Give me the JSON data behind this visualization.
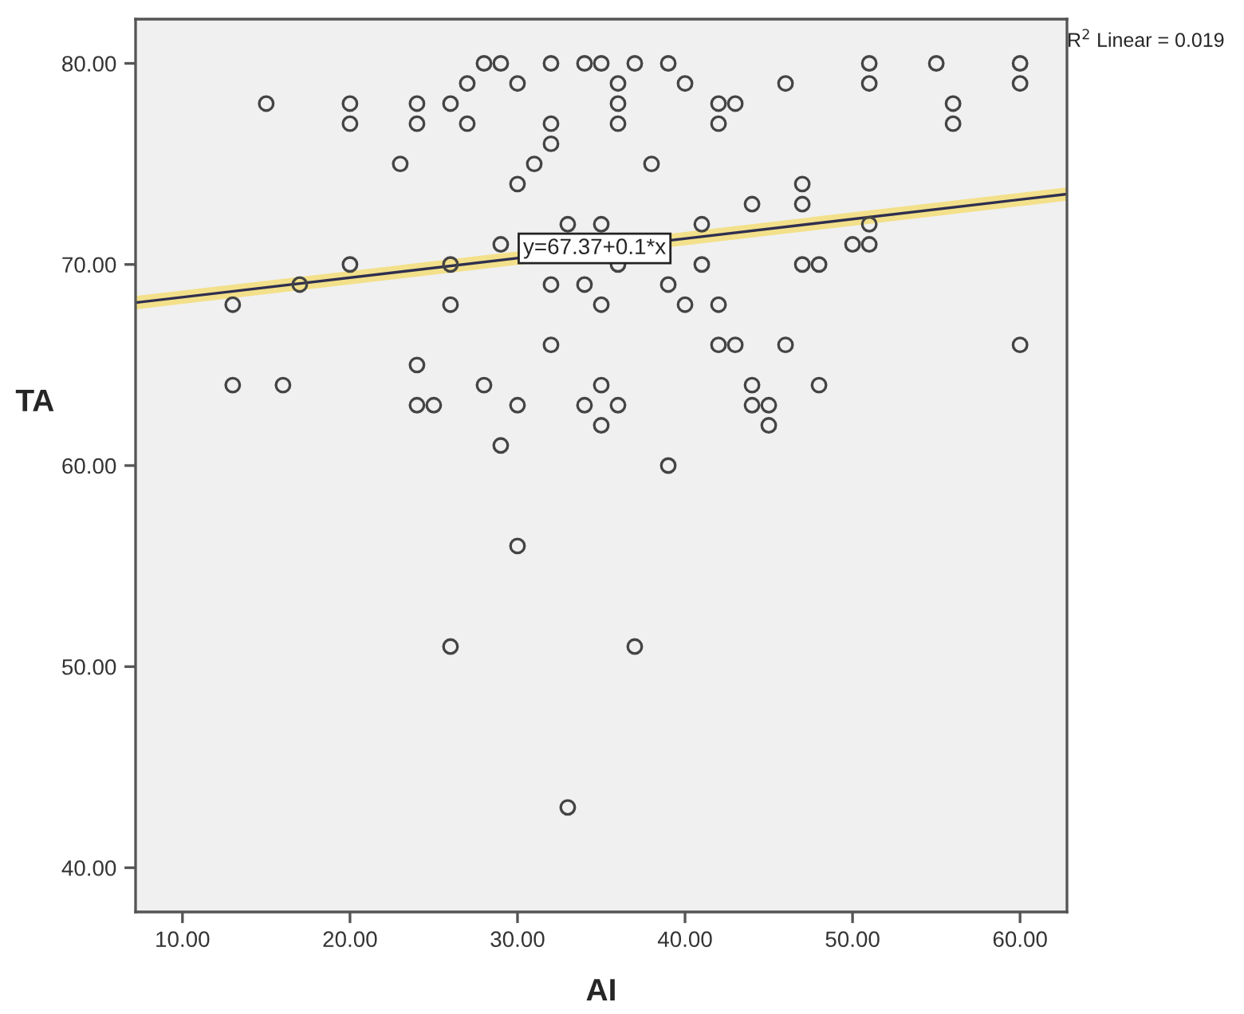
{
  "chart_data": {
    "type": "scatter",
    "xlabel": "AI",
    "ylabel": "TA",
    "xlim": [
      7.2,
      62.8
    ],
    "ylim": [
      37.8,
      82.2
    ],
    "xticks": [
      {
        "value": 10,
        "label": "10.00"
      },
      {
        "value": 20,
        "label": "20.00"
      },
      {
        "value": 30,
        "label": "30.00"
      },
      {
        "value": 40,
        "label": "40.00"
      },
      {
        "value": 50,
        "label": "50.00"
      },
      {
        "value": 60,
        "label": "60.00"
      }
    ],
    "yticks": [
      {
        "value": 40,
        "label": "40.00"
      },
      {
        "value": 50,
        "label": "50.00"
      },
      {
        "value": 60,
        "label": "60.00"
      },
      {
        "value": 70,
        "label": "70.00"
      },
      {
        "value": 80,
        "label": "80.00"
      }
    ],
    "grid": false,
    "series": [
      {
        "marker": "circle",
        "color": "#444444",
        "x": [
          13,
          13,
          15,
          16,
          17,
          20,
          20,
          20,
          23,
          24,
          24,
          24,
          24,
          25,
          26,
          26,
          26,
          26,
          27,
          27,
          28,
          28,
          29,
          29,
          29,
          30,
          30,
          30,
          30,
          31,
          32,
          32,
          32,
          32,
          32,
          33,
          33,
          34,
          34,
          34,
          35,
          35,
          35,
          35,
          35,
          36,
          36,
          36,
          36,
          36,
          37,
          37,
          38,
          39,
          39,
          39,
          40,
          40,
          41,
          41,
          42,
          42,
          42,
          42,
          43,
          43,
          44,
          44,
          44,
          45,
          45,
          46,
          46,
          47,
          47,
          47,
          48,
          48,
          50,
          51,
          51,
          51,
          51,
          55,
          56,
          56,
          60,
          60,
          60
        ],
        "values": [
          68,
          64,
          78,
          64,
          69,
          78,
          77,
          70,
          75,
          78,
          77,
          65,
          63,
          63,
          78,
          70,
          68,
          51,
          79,
          77,
          80,
          64,
          80,
          71,
          61,
          79,
          74,
          63,
          56,
          75,
          80,
          77,
          76,
          69,
          66,
          72,
          43,
          80,
          69,
          63,
          80,
          72,
          68,
          64,
          62,
          79,
          78,
          77,
          70,
          63,
          80,
          51,
          75,
          80,
          69,
          60,
          79,
          68,
          72,
          70,
          78,
          77,
          68,
          66,
          78,
          66,
          73,
          64,
          63,
          63,
          62,
          79,
          66,
          74,
          73,
          70,
          70,
          64,
          71,
          80,
          79,
          72,
          71,
          80,
          78,
          77,
          80,
          79,
          66
        ]
      },
      {
        "type": "line",
        "color": "#2f2f4f",
        "line_style": "solid",
        "x": [
          7.2,
          62.8
        ],
        "values": [
          68.1,
          73.5
        ]
      }
    ],
    "annotations": [
      {
        "text": "y=67.37+0.1*x",
        "x": 34.6,
        "y": 70.8
      },
      "R$^{2}$ Linear = 0.019"
    ]
  }
}
